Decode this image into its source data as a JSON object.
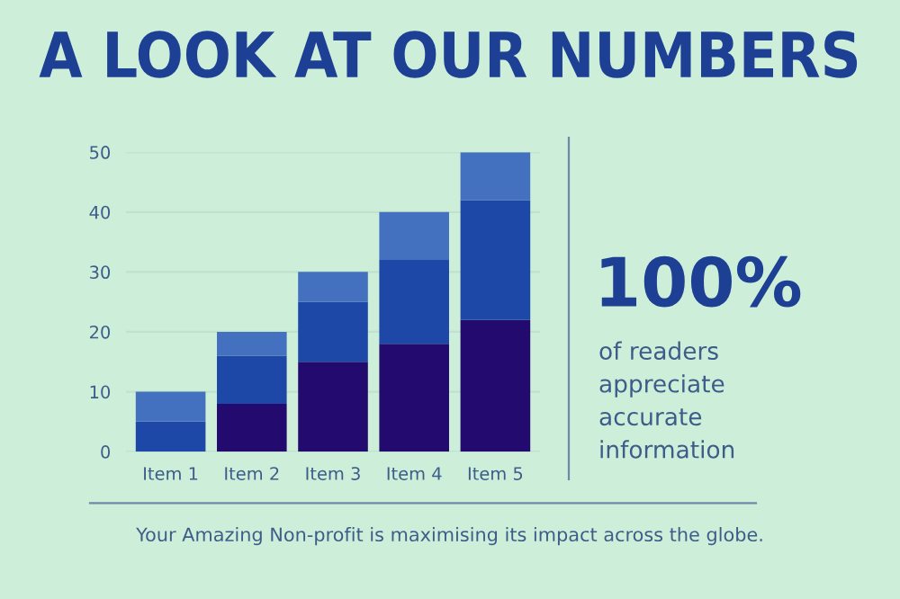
{
  "chart_data": {
    "type": "bar",
    "title": "A LOOK AT OUR NUMBERS",
    "stacked": true,
    "categories": [
      "Item 1",
      "Item 2",
      "Item 3",
      "Item 4",
      "Item 5"
    ],
    "series": [
      {
        "color": "#230a6e",
        "values": [
          0,
          8,
          15,
          18,
          22
        ]
      },
      {
        "color": "#1d48a8",
        "values": [
          5,
          8,
          10,
          14,
          20
        ]
      },
      {
        "color": "#4470c0",
        "values": [
          5,
          4,
          5,
          8,
          8
        ]
      }
    ],
    "ylim": [
      0,
      50
    ],
    "yticks": [
      0,
      10,
      20,
      30,
      40,
      50
    ],
    "grid": "y",
    "legend": false,
    "annotations": [
      "100%",
      "of readers appreciate accurate information",
      "Your Amazing Non-profit is maximising its impact across the globe."
    ]
  }
}
